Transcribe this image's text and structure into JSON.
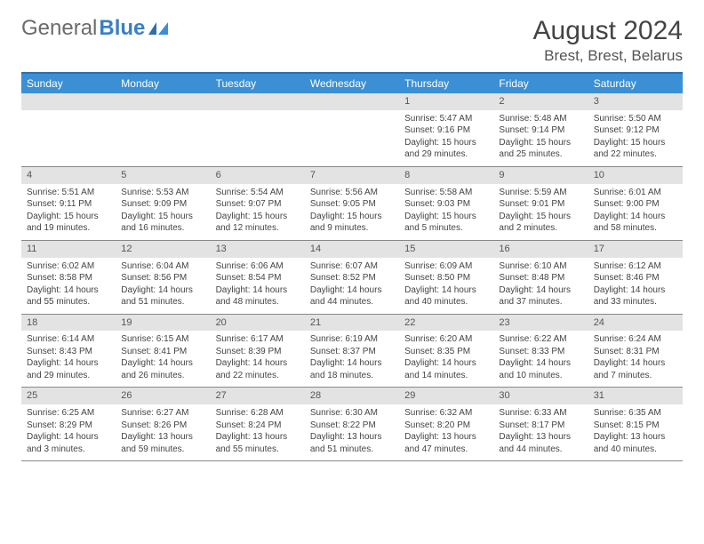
{
  "brand": {
    "part1": "General",
    "part2": "Blue"
  },
  "title": "August 2024",
  "location": "Brest, Brest, Belarus",
  "colors": {
    "header_bg": "#3b8fd4",
    "header_text": "#ffffff",
    "border_top": "#2f6fa8",
    "daynum_bg": "#e3e3e3",
    "text": "#444444",
    "logo_gray": "#6b6b6b",
    "logo_blue": "#3b7fc4"
  },
  "typography": {
    "title_fontsize": 30,
    "location_fontsize": 17,
    "dayheader_fontsize": 12,
    "cell_fontsize": 10
  },
  "weekdays": [
    "Sunday",
    "Monday",
    "Tuesday",
    "Wednesday",
    "Thursday",
    "Friday",
    "Saturday"
  ],
  "weeks": [
    {
      "days": [
        null,
        null,
        null,
        null,
        {
          "n": "1",
          "sunrise": "5:47 AM",
          "sunset": "9:16 PM",
          "daylight": "15 hours and 29 minutes."
        },
        {
          "n": "2",
          "sunrise": "5:48 AM",
          "sunset": "9:14 PM",
          "daylight": "15 hours and 25 minutes."
        },
        {
          "n": "3",
          "sunrise": "5:50 AM",
          "sunset": "9:12 PM",
          "daylight": "15 hours and 22 minutes."
        }
      ]
    },
    {
      "days": [
        {
          "n": "4",
          "sunrise": "5:51 AM",
          "sunset": "9:11 PM",
          "daylight": "15 hours and 19 minutes."
        },
        {
          "n": "5",
          "sunrise": "5:53 AM",
          "sunset": "9:09 PM",
          "daylight": "15 hours and 16 minutes."
        },
        {
          "n": "6",
          "sunrise": "5:54 AM",
          "sunset": "9:07 PM",
          "daylight": "15 hours and 12 minutes."
        },
        {
          "n": "7",
          "sunrise": "5:56 AM",
          "sunset": "9:05 PM",
          "daylight": "15 hours and 9 minutes."
        },
        {
          "n": "8",
          "sunrise": "5:58 AM",
          "sunset": "9:03 PM",
          "daylight": "15 hours and 5 minutes."
        },
        {
          "n": "9",
          "sunrise": "5:59 AM",
          "sunset": "9:01 PM",
          "daylight": "15 hours and 2 minutes."
        },
        {
          "n": "10",
          "sunrise": "6:01 AM",
          "sunset": "9:00 PM",
          "daylight": "14 hours and 58 minutes."
        }
      ]
    },
    {
      "days": [
        {
          "n": "11",
          "sunrise": "6:02 AM",
          "sunset": "8:58 PM",
          "daylight": "14 hours and 55 minutes."
        },
        {
          "n": "12",
          "sunrise": "6:04 AM",
          "sunset": "8:56 PM",
          "daylight": "14 hours and 51 minutes."
        },
        {
          "n": "13",
          "sunrise": "6:06 AM",
          "sunset": "8:54 PM",
          "daylight": "14 hours and 48 minutes."
        },
        {
          "n": "14",
          "sunrise": "6:07 AM",
          "sunset": "8:52 PM",
          "daylight": "14 hours and 44 minutes."
        },
        {
          "n": "15",
          "sunrise": "6:09 AM",
          "sunset": "8:50 PM",
          "daylight": "14 hours and 40 minutes."
        },
        {
          "n": "16",
          "sunrise": "6:10 AM",
          "sunset": "8:48 PM",
          "daylight": "14 hours and 37 minutes."
        },
        {
          "n": "17",
          "sunrise": "6:12 AM",
          "sunset": "8:46 PM",
          "daylight": "14 hours and 33 minutes."
        }
      ]
    },
    {
      "days": [
        {
          "n": "18",
          "sunrise": "6:14 AM",
          "sunset": "8:43 PM",
          "daylight": "14 hours and 29 minutes."
        },
        {
          "n": "19",
          "sunrise": "6:15 AM",
          "sunset": "8:41 PM",
          "daylight": "14 hours and 26 minutes."
        },
        {
          "n": "20",
          "sunrise": "6:17 AM",
          "sunset": "8:39 PM",
          "daylight": "14 hours and 22 minutes."
        },
        {
          "n": "21",
          "sunrise": "6:19 AM",
          "sunset": "8:37 PM",
          "daylight": "14 hours and 18 minutes."
        },
        {
          "n": "22",
          "sunrise": "6:20 AM",
          "sunset": "8:35 PM",
          "daylight": "14 hours and 14 minutes."
        },
        {
          "n": "23",
          "sunrise": "6:22 AM",
          "sunset": "8:33 PM",
          "daylight": "14 hours and 10 minutes."
        },
        {
          "n": "24",
          "sunrise": "6:24 AM",
          "sunset": "8:31 PM",
          "daylight": "14 hours and 7 minutes."
        }
      ]
    },
    {
      "days": [
        {
          "n": "25",
          "sunrise": "6:25 AM",
          "sunset": "8:29 PM",
          "daylight": "14 hours and 3 minutes."
        },
        {
          "n": "26",
          "sunrise": "6:27 AM",
          "sunset": "8:26 PM",
          "daylight": "13 hours and 59 minutes."
        },
        {
          "n": "27",
          "sunrise": "6:28 AM",
          "sunset": "8:24 PM",
          "daylight": "13 hours and 55 minutes."
        },
        {
          "n": "28",
          "sunrise": "6:30 AM",
          "sunset": "8:22 PM",
          "daylight": "13 hours and 51 minutes."
        },
        {
          "n": "29",
          "sunrise": "6:32 AM",
          "sunset": "8:20 PM",
          "daylight": "13 hours and 47 minutes."
        },
        {
          "n": "30",
          "sunrise": "6:33 AM",
          "sunset": "8:17 PM",
          "daylight": "13 hours and 44 minutes."
        },
        {
          "n": "31",
          "sunrise": "6:35 AM",
          "sunset": "8:15 PM",
          "daylight": "13 hours and 40 minutes."
        }
      ]
    }
  ],
  "labels": {
    "sunrise": "Sunrise:",
    "sunset": "Sunset:",
    "daylight": "Daylight:"
  }
}
